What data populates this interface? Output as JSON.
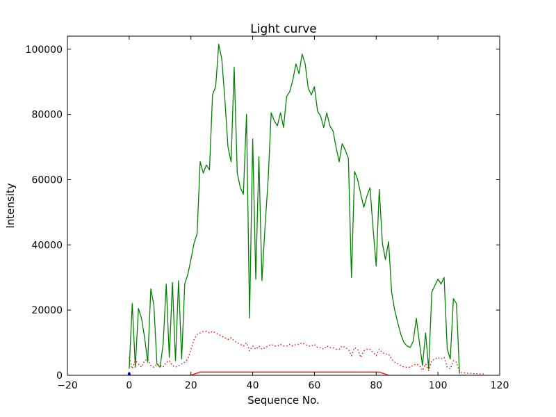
{
  "chart_data": {
    "type": "line",
    "title": "Light curve",
    "xlabel": "Sequence No.",
    "ylabel": "Intensity",
    "xlim": [
      -20,
      120
    ],
    "ylim": [
      0,
      104000
    ],
    "xticks": [
      -20,
      0,
      20,
      40,
      60,
      80,
      100,
      120
    ],
    "yticks": [
      0,
      20000,
      40000,
      60000,
      80000,
      100000
    ],
    "grid": false,
    "legend": "none",
    "frame_color": "#000000",
    "background_color": "#ffffff",
    "series": [
      {
        "name": "intensity-main",
        "color": "#008000",
        "style": "solid",
        "x": [
          0,
          1,
          2,
          3,
          4,
          5,
          6,
          7,
          8,
          9,
          10,
          11,
          12,
          13,
          14,
          15,
          16,
          17,
          18,
          19,
          20,
          21,
          22,
          23,
          24,
          25,
          26,
          27,
          28,
          29,
          30,
          31,
          32,
          33,
          34,
          35,
          36,
          37,
          38,
          39,
          40,
          41,
          42,
          43,
          44,
          45,
          46,
          47,
          48,
          49,
          50,
          51,
          52,
          53,
          54,
          55,
          56,
          57,
          58,
          59,
          60,
          61,
          62,
          63,
          64,
          65,
          66,
          67,
          68,
          69,
          70,
          71,
          72,
          73,
          74,
          75,
          76,
          77,
          78,
          79,
          80,
          81,
          82,
          83,
          84,
          85,
          86,
          87,
          88,
          89,
          90,
          91,
          92,
          93,
          94,
          95,
          96,
          97,
          98,
          99,
          100,
          101,
          102,
          103,
          104,
          105,
          106,
          107
        ],
        "y": [
          2000,
          22000,
          2500,
          20500,
          17500,
          11500,
          4000,
          26500,
          21500,
          3500,
          2500,
          9500,
          28000,
          5500,
          28500,
          4500,
          29000,
          5000,
          28000,
          31000,
          35500,
          40500,
          43500,
          65500,
          62000,
          64500,
          63000,
          86000,
          88500,
          101500,
          97000,
          84500,
          70000,
          65500,
          94500,
          62000,
          57500,
          55500,
          80000,
          17500,
          72500,
          29500,
          67000,
          29000,
          45500,
          60000,
          80500,
          78000,
          76500,
          80500,
          76000,
          85500,
          87000,
          90500,
          95500,
          92500,
          98500,
          95500,
          88000,
          86000,
          88500,
          81000,
          79500,
          76000,
          80500,
          76500,
          75000,
          70000,
          65500,
          71000,
          69000,
          66500,
          30000,
          62500,
          60000,
          55500,
          51500,
          55000,
          57500,
          45000,
          33500,
          57000,
          40500,
          35500,
          41000,
          25500,
          20000,
          16000,
          12500,
          10000,
          9000,
          8500,
          10500,
          17500,
          10000,
          3000,
          13000,
          2000,
          25500,
          27500,
          29500,
          28000,
          30000,
          8000,
          5000,
          23500,
          22000,
          500
        ]
      },
      {
        "name": "background-dotted",
        "color": "#ff0000",
        "style": "dotted",
        "x": [
          0,
          1,
          2,
          3,
          4,
          5,
          6,
          7,
          8,
          9,
          10,
          11,
          12,
          13,
          14,
          15,
          16,
          17,
          18,
          19,
          20,
          21,
          22,
          23,
          24,
          25,
          26,
          27,
          28,
          29,
          30,
          31,
          32,
          33,
          34,
          35,
          36,
          37,
          38,
          39,
          40,
          41,
          42,
          43,
          44,
          45,
          46,
          47,
          48,
          49,
          50,
          51,
          52,
          53,
          54,
          55,
          56,
          57,
          58,
          59,
          60,
          61,
          62,
          63,
          64,
          65,
          66,
          67,
          68,
          69,
          70,
          71,
          72,
          73,
          74,
          75,
          76,
          77,
          78,
          79,
          80,
          81,
          82,
          83,
          84,
          85,
          86,
          87,
          88,
          89,
          90,
          91,
          92,
          93,
          94,
          95,
          96,
          97,
          98,
          99,
          100,
          101,
          102,
          103,
          104,
          105,
          106,
          107,
          108,
          109,
          110,
          111,
          112,
          113,
          114,
          115
        ],
        "y": [
          5500,
          2000,
          4500,
          3500,
          2500,
          4500,
          5000,
          3000,
          2500,
          3500,
          3000,
          2500,
          4000,
          4500,
          3000,
          2500,
          3000,
          3500,
          4000,
          5000,
          8000,
          11000,
          12500,
          13000,
          13500,
          13500,
          13000,
          13500,
          13000,
          12500,
          12000,
          11500,
          11000,
          11500,
          10500,
          10000,
          9500,
          9000,
          10000,
          7500,
          9000,
          8000,
          9000,
          8000,
          8500,
          9000,
          9500,
          9000,
          9000,
          9500,
          9000,
          9000,
          9500,
          9000,
          9500,
          9500,
          10000,
          9500,
          9000,
          9000,
          9500,
          8500,
          8500,
          8000,
          9000,
          8500,
          8500,
          8000,
          8000,
          9000,
          8500,
          8000,
          6000,
          8500,
          8000,
          5500,
          7500,
          8000,
          8000,
          7000,
          6000,
          8000,
          7000,
          6500,
          6500,
          5000,
          4000,
          3500,
          3000,
          2500,
          2500,
          2500,
          3000,
          3500,
          3000,
          1500,
          3500,
          1500,
          4500,
          5000,
          5500,
          5000,
          5500,
          2500,
          2000,
          4500,
          4000,
          1000,
          800,
          700,
          600,
          600,
          500,
          500,
          400,
          400
        ]
      },
      {
        "name": "threshold-solid",
        "color": "#ff0000",
        "style": "solid",
        "x": [
          0,
          20,
          23,
          81,
          84,
          115
        ],
        "y": [
          0,
          0,
          1000,
          1000,
          0,
          0
        ]
      },
      {
        "name": "start-marker",
        "color": "#0000ff",
        "style": "point",
        "x": [
          0
        ],
        "y": [
          400
        ]
      }
    ]
  }
}
